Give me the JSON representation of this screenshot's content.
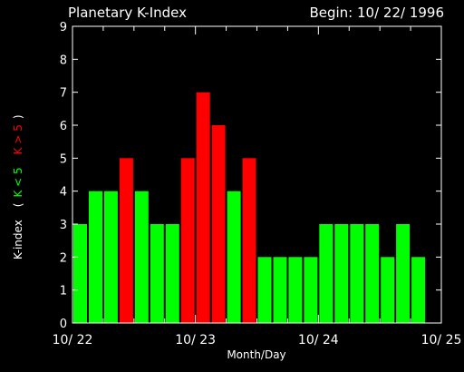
{
  "chart_data": {
    "type": "bar",
    "title": "Planetary K-Index",
    "begin_label": "Begin: 10/ 22/ 1996",
    "xlabel": "Month/Day",
    "ylabel": {
      "prefix": "K-index",
      "open_paren": "(",
      "green_part": "K < 5",
      "red_part": "K > 5",
      "close_paren": ")"
    },
    "ylim": [
      0,
      9
    ],
    "yticks": [
      "0",
      "1",
      "2",
      "3",
      "4",
      "5",
      "6",
      "7",
      "8",
      "9"
    ],
    "xtick_labels": [
      "10/ 22",
      "10/ 23",
      "10/ 24",
      "10/ 25"
    ],
    "x_range_days": 3,
    "bars_per_day": 8,
    "values": [
      3,
      4,
      4,
      5,
      4,
      3,
      3,
      5,
      7,
      6,
      4,
      5,
      2,
      2,
      2,
      2,
      3,
      3,
      3,
      3,
      2,
      3,
      2
    ],
    "threshold": 5,
    "colors": {
      "background": "#000000",
      "axes": "#ffffff",
      "text": "#ffffff",
      "below_threshold": "#00ff00",
      "at_or_above_threshold": "#ff0000"
    }
  }
}
